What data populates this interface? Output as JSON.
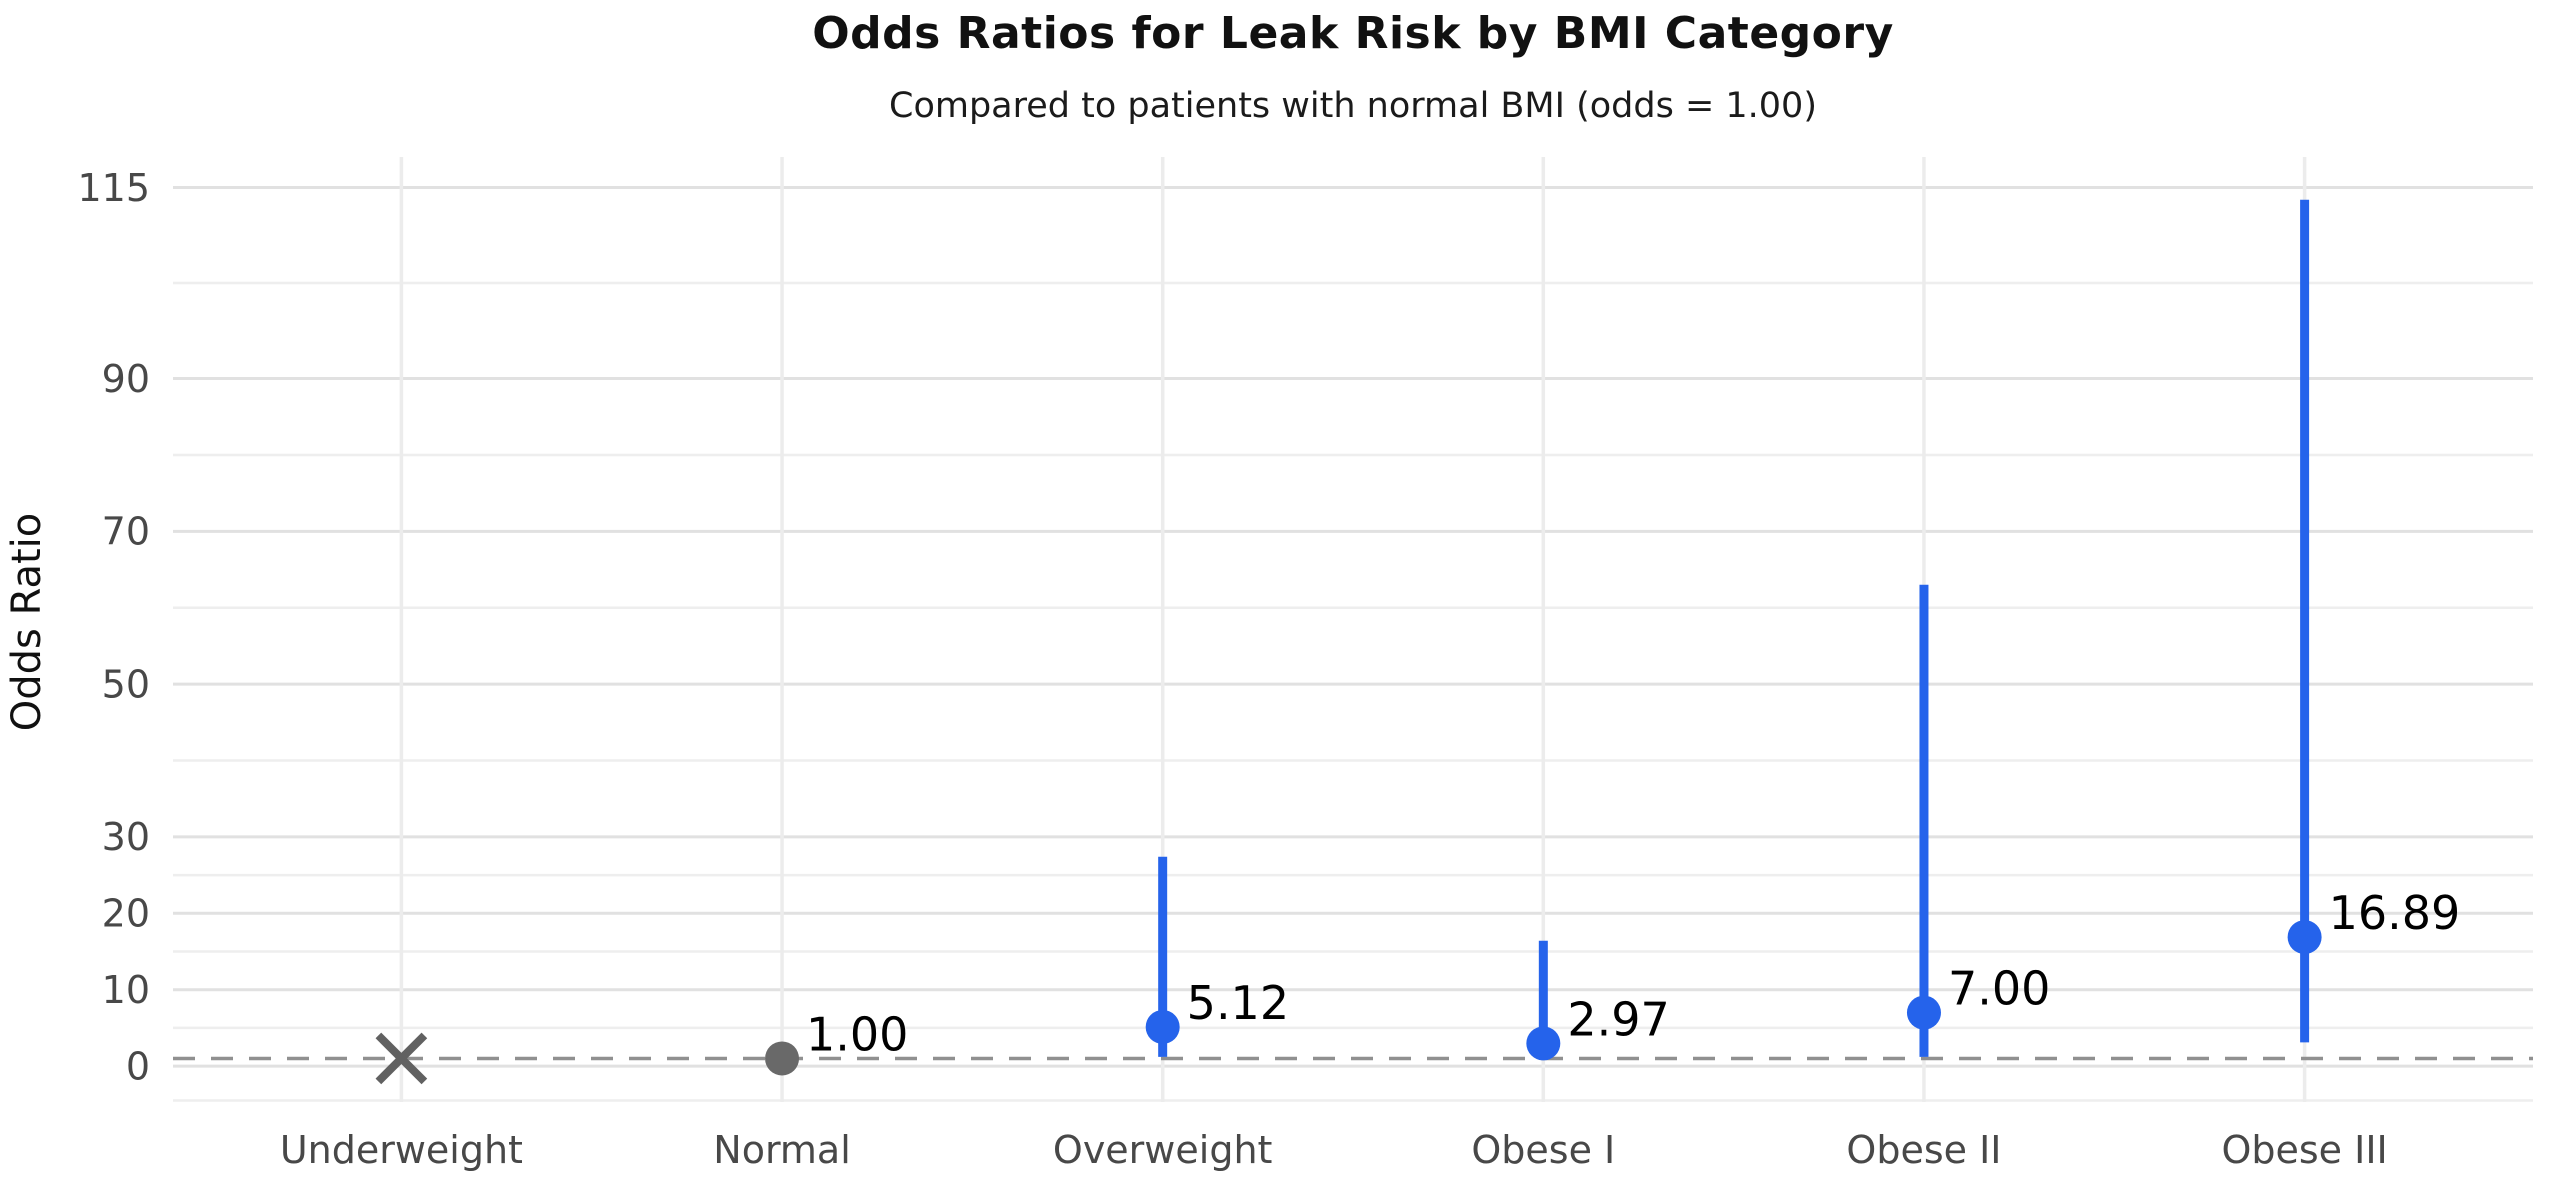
{
  "title": "Odds Ratios for Leak Risk by BMI Category",
  "subtitle": "Compared to patients with normal BMI (odds = 1.00)",
  "colors": {
    "accent_blue": "#2563EB",
    "baseline_gray": "#696969",
    "x_marker_gray": "#616161",
    "reference_line": "#909090",
    "major_grid": "#e1e1e1",
    "minor_grid": "#eeeeee",
    "vertical_grid": "#ececec",
    "tick_label": "#484848",
    "annotation": "#000000",
    "background": "#ffffff"
  },
  "chart_data": {
    "type": "scatter",
    "title": "Odds Ratios for Leak Risk by BMI Category",
    "subtitle": "Compared to patients with normal BMI (odds = 1.00)",
    "xlabel": "",
    "ylabel": "Odds Ratio",
    "categories": [
      "Underweight",
      "Normal",
      "Overweight",
      "Obese I",
      "Obese II",
      "Obese III"
    ],
    "points": [
      {
        "category": "Underweight",
        "odds_ratio": 1.0,
        "value_label": "",
        "marker": "x",
        "color": "#616161",
        "ci_low": null,
        "ci_high": null
      },
      {
        "category": "Normal",
        "odds_ratio": 1.0,
        "value_label": "1.00",
        "marker": "circle",
        "color": "#696969",
        "ci_low": null,
        "ci_high": null
      },
      {
        "category": "Overweight",
        "odds_ratio": 5.12,
        "value_label": "5.12",
        "marker": "circle",
        "color": "#2563EB",
        "ci_low": 1.2,
        "ci_high": 27.4
      },
      {
        "category": "Obese I",
        "odds_ratio": 2.97,
        "value_label": "2.97",
        "marker": "circle",
        "color": "#2563EB",
        "ci_low": 0.8,
        "ci_high": 16.4
      },
      {
        "category": "Obese II",
        "odds_ratio": 7.0,
        "value_label": "7.00",
        "marker": "circle",
        "color": "#2563EB",
        "ci_low": 1.2,
        "ci_high": 63.0
      },
      {
        "category": "Obese III",
        "odds_ratio": 16.89,
        "value_label": "16.89",
        "marker": "circle",
        "color": "#2563EB",
        "ci_low": 3.1,
        "ci_high": 113.4
      }
    ],
    "reference_line": {
      "value": 1.0,
      "style": "dashed",
      "color": "#909090",
      "meaning": "odds = 1.00"
    },
    "y_major_ticks": [
      0,
      10,
      20,
      30,
      50,
      70,
      90,
      115
    ],
    "y_minor_gridlines": [
      -4.5,
      5,
      15,
      25,
      40,
      60,
      80,
      102.5
    ],
    "ylim": [
      -4.7,
      119.0
    ],
    "grid": true,
    "legend_position": "none"
  }
}
